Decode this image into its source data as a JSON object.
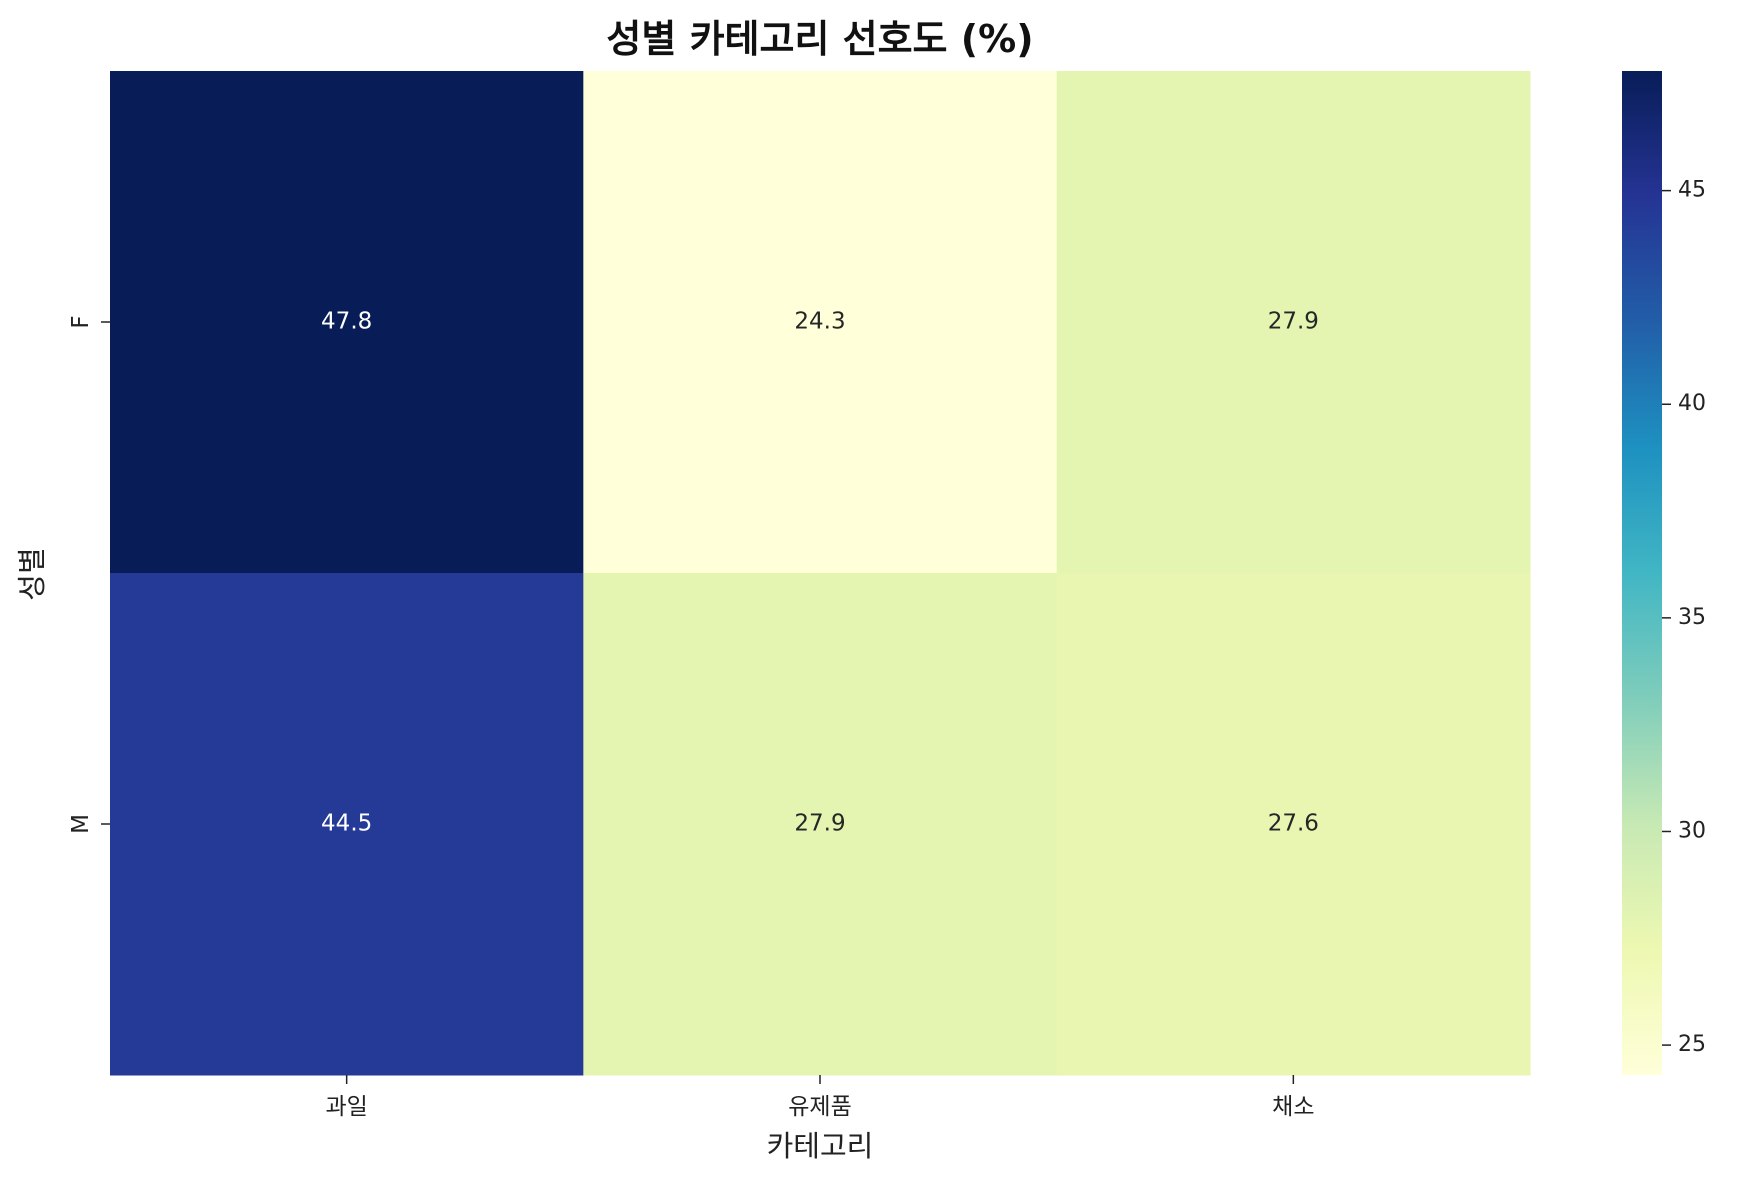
{
  "chart_data": {
    "type": "heatmap",
    "title": "성별 카테고리 선호도 (%)",
    "xlabel": "카테고리",
    "ylabel": "성별",
    "x_categories": [
      "과일",
      "유제품",
      "채소"
    ],
    "y_categories": [
      "F",
      "M"
    ],
    "values": [
      [
        47.8,
        24.3,
        27.9
      ],
      [
        44.5,
        27.9,
        27.6
      ]
    ],
    "value_labels": [
      [
        "47.8",
        "24.3",
        "27.9"
      ],
      [
        "44.5",
        "27.9",
        "27.6"
      ]
    ],
    "colormap": "YlGnBu",
    "color_range": [
      24.3,
      47.8
    ],
    "colorbar": {
      "ticks": [
        25,
        30,
        35,
        40,
        45
      ],
      "tick_labels": [
        "25",
        "30",
        "35",
        "40",
        "45"
      ]
    }
  }
}
